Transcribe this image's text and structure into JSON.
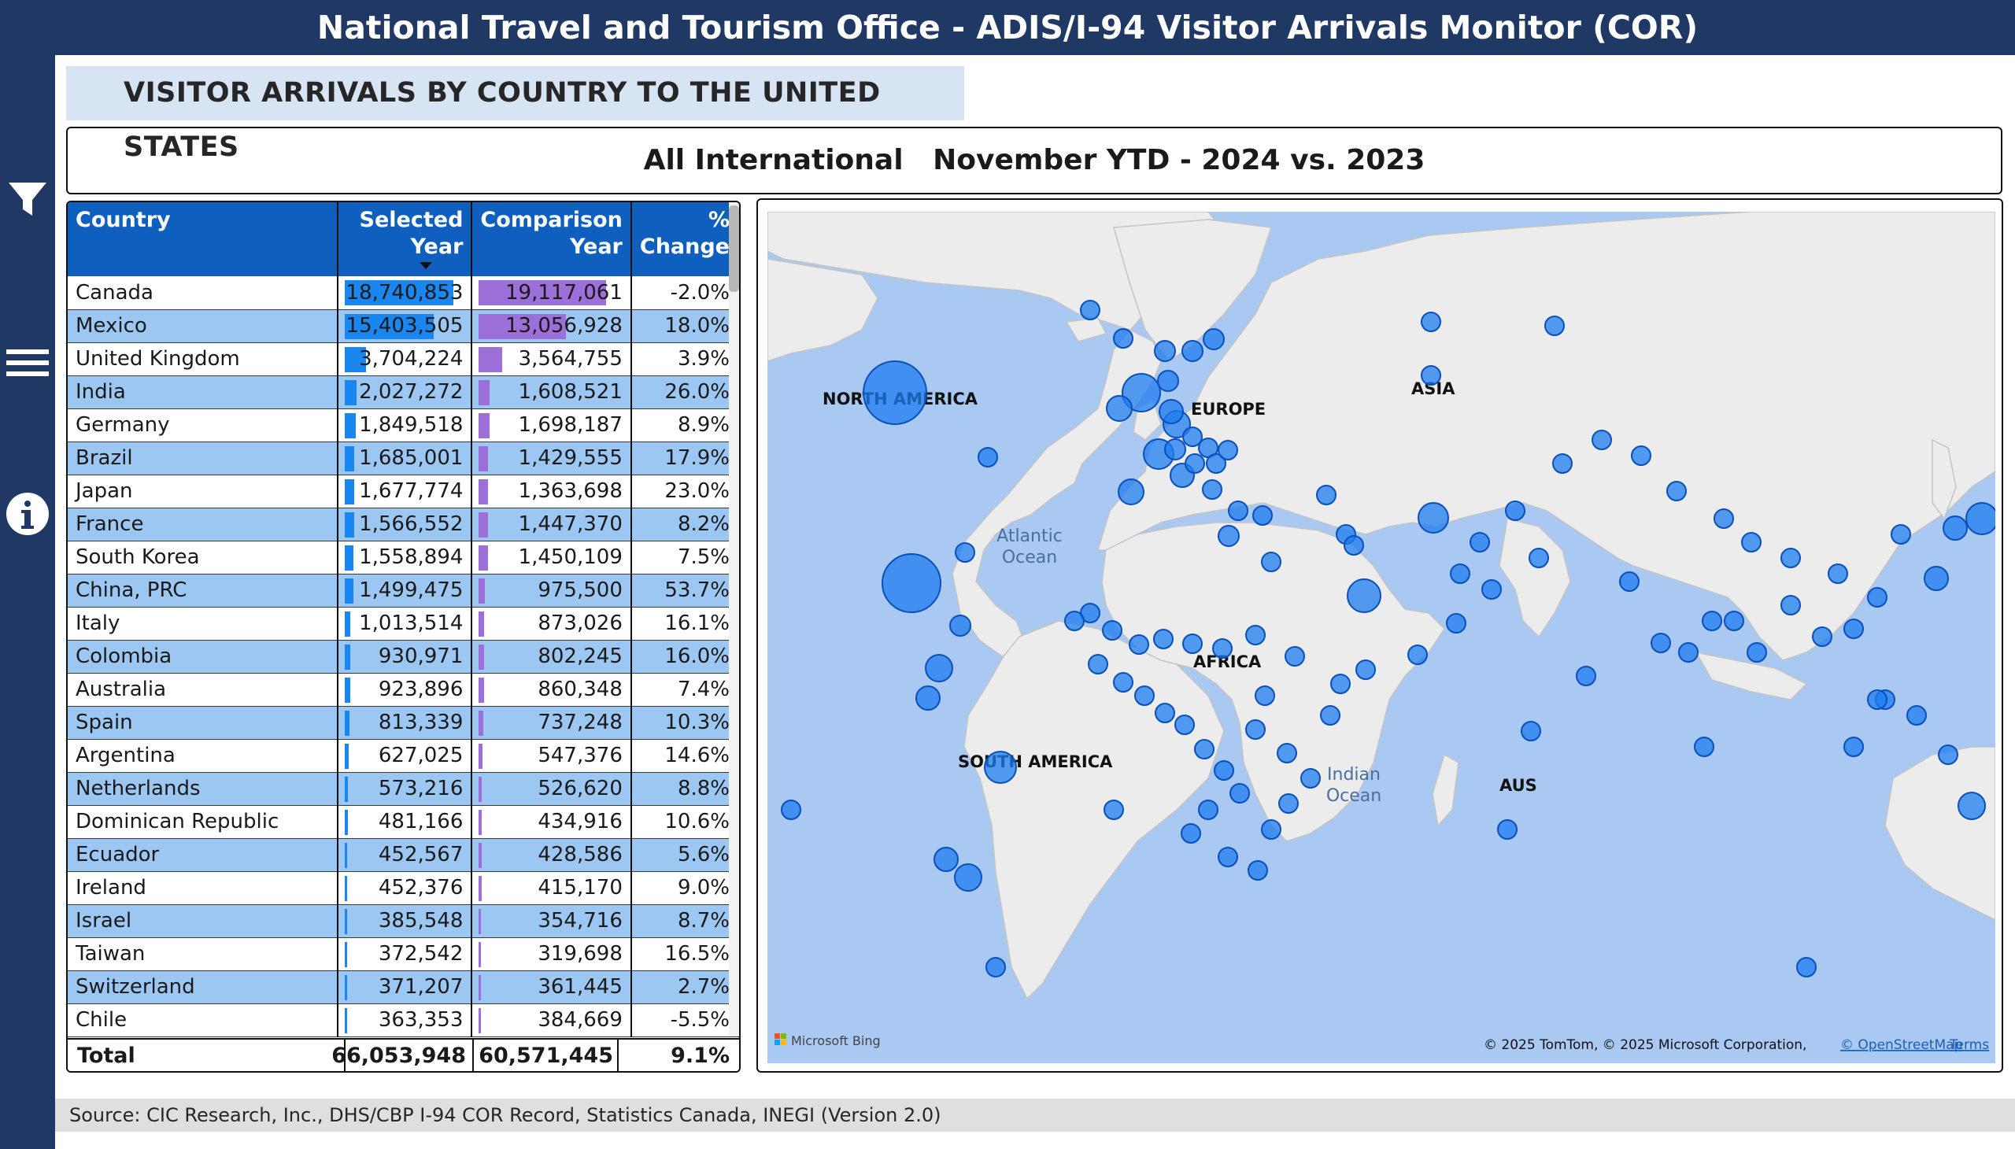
{
  "header": {
    "title": "National Travel and Tourism Office  - ADIS/I-94 Visitor Arrivals Monitor (COR)"
  },
  "subtitle": "VISITOR ARRIVALS BY COUNTRY TO THE UNITED STATES",
  "filter_summary": "All International   November YTD - 2024 vs. 2023",
  "rail": {
    "icons": [
      "filter-icon",
      "menu-icon",
      "info-icon"
    ]
  },
  "table": {
    "columns": [
      {
        "line1": "Country",
        "line2": ""
      },
      {
        "line1": "Selected",
        "line2": "Year"
      },
      {
        "line1": "Comparison",
        "line2": "Year"
      },
      {
        "line1": "%",
        "line2": "Change"
      }
    ],
    "sort_column": "Selected Year",
    "sort_direction": "descending",
    "rows": [
      {
        "country": "Canada",
        "selected": "18,740,853",
        "comparison": "19,117,061",
        "change": "-2.0%"
      },
      {
        "country": "Mexico",
        "selected": "15,403,505",
        "comparison": "13,056,928",
        "change": "18.0%"
      },
      {
        "country": "United Kingdom",
        "selected": "3,704,224",
        "comparison": "3,564,755",
        "change": "3.9%"
      },
      {
        "country": "India",
        "selected": "2,027,272",
        "comparison": "1,608,521",
        "change": "26.0%"
      },
      {
        "country": "Germany",
        "selected": "1,849,518",
        "comparison": "1,698,187",
        "change": "8.9%"
      },
      {
        "country": "Brazil",
        "selected": "1,685,001",
        "comparison": "1,429,555",
        "change": "17.9%"
      },
      {
        "country": "Japan",
        "selected": "1,677,774",
        "comparison": "1,363,698",
        "change": "23.0%"
      },
      {
        "country": "France",
        "selected": "1,566,552",
        "comparison": "1,447,370",
        "change": "8.2%"
      },
      {
        "country": "South Korea",
        "selected": "1,558,894",
        "comparison": "1,450,109",
        "change": "7.5%"
      },
      {
        "country": "China, PRC",
        "selected": "1,499,475",
        "comparison": "975,500",
        "change": "53.7%"
      },
      {
        "country": "Italy",
        "selected": "1,013,514",
        "comparison": "873,026",
        "change": "16.1%"
      },
      {
        "country": "Colombia",
        "selected": "930,971",
        "comparison": "802,245",
        "change": "16.0%"
      },
      {
        "country": "Australia",
        "selected": "923,896",
        "comparison": "860,348",
        "change": "7.4%"
      },
      {
        "country": "Spain",
        "selected": "813,339",
        "comparison": "737,248",
        "change": "10.3%"
      },
      {
        "country": "Argentina",
        "selected": "627,025",
        "comparison": "547,376",
        "change": "14.6%"
      },
      {
        "country": "Netherlands",
        "selected": "573,216",
        "comparison": "526,620",
        "change": "8.8%"
      },
      {
        "country": "Dominican Republic",
        "selected": "481,166",
        "comparison": "434,916",
        "change": "10.6%"
      },
      {
        "country": "Ecuador",
        "selected": "452,567",
        "comparison": "428,586",
        "change": "5.6%"
      },
      {
        "country": "Ireland",
        "selected": "452,376",
        "comparison": "415,170",
        "change": "9.0%"
      },
      {
        "country": "Israel",
        "selected": "385,548",
        "comparison": "354,716",
        "change": "8.7%"
      },
      {
        "country": "Taiwan",
        "selected": "372,542",
        "comparison": "319,698",
        "change": "16.5%"
      },
      {
        "country": "Switzerland",
        "selected": "371,207",
        "comparison": "361,445",
        "change": "2.7%"
      },
      {
        "country": "Chile",
        "selected": "363,353",
        "comparison": "384,669",
        "change": "-5.5%"
      }
    ],
    "total": {
      "label": "Total",
      "selected": "66,053,948",
      "comparison": "60,571,445",
      "change": "9.1%"
    }
  },
  "map": {
    "region_labels": [
      "NORTH AMERICA",
      "EUROPE",
      "ASIA",
      "AFRICA",
      "SOUTH AMERICA",
      "AUS"
    ],
    "ocean_labels": [
      [
        "Atlantic",
        "Ocean"
      ],
      [
        "Indian",
        "Ocean"
      ]
    ],
    "bing_logo": "Microsoft Bing",
    "attribution": "© 2025 TomTom, © 2025 Microsoft Corporation,",
    "osm_link": "© OpenStreetMap",
    "terms_link": "Terms"
  },
  "footer": {
    "source": "Source: CIC Research, Inc., DHS/CBP I-94 COR Record, Statistics Canada, INEGI (Version 2.0)"
  },
  "colors": {
    "navy": "#1f3864",
    "header_blue": "#0f5fbf",
    "stripe_blue": "#9dc7f3",
    "selected_bar": "#1a86f0",
    "comparison_bar": "#9d6fd8",
    "ocean": "#a9c8f2",
    "land": "#ececec",
    "bubble": "#1e7cf0"
  }
}
